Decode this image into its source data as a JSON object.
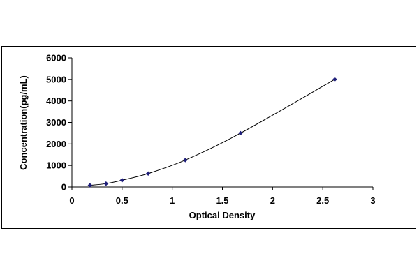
{
  "chart_data": {
    "type": "scatter",
    "title": "",
    "xlabel": "Optical Density",
    "ylabel": "Concentration(pg/mL)",
    "xlim": [
      0,
      3
    ],
    "ylim": [
      0,
      6000
    ],
    "x_ticks": [
      0,
      0.5,
      1,
      1.5,
      2,
      2.5,
      3
    ],
    "x_tick_labels": [
      "0",
      "0.5",
      "1",
      "1.5",
      "2",
      "2.5",
      "3"
    ],
    "y_ticks": [
      0,
      1000,
      2000,
      3000,
      4000,
      5000,
      6000
    ],
    "y_tick_labels": [
      "0",
      "1000",
      "2000",
      "3000",
      "4000",
      "5000",
      "6000"
    ],
    "grid": false,
    "legend": "none",
    "series": [
      {
        "marker": "diamond",
        "fit": "smooth curve",
        "x": [
          0.18,
          0.34,
          0.5,
          0.76,
          1.13,
          1.68,
          2.62
        ],
        "y": [
          78,
          156,
          312,
          625,
          1250,
          2500,
          5000
        ]
      }
    ],
    "colors": {
      "marker": "#1f1f7a",
      "curve": "#000000",
      "axis": "#000000"
    }
  }
}
